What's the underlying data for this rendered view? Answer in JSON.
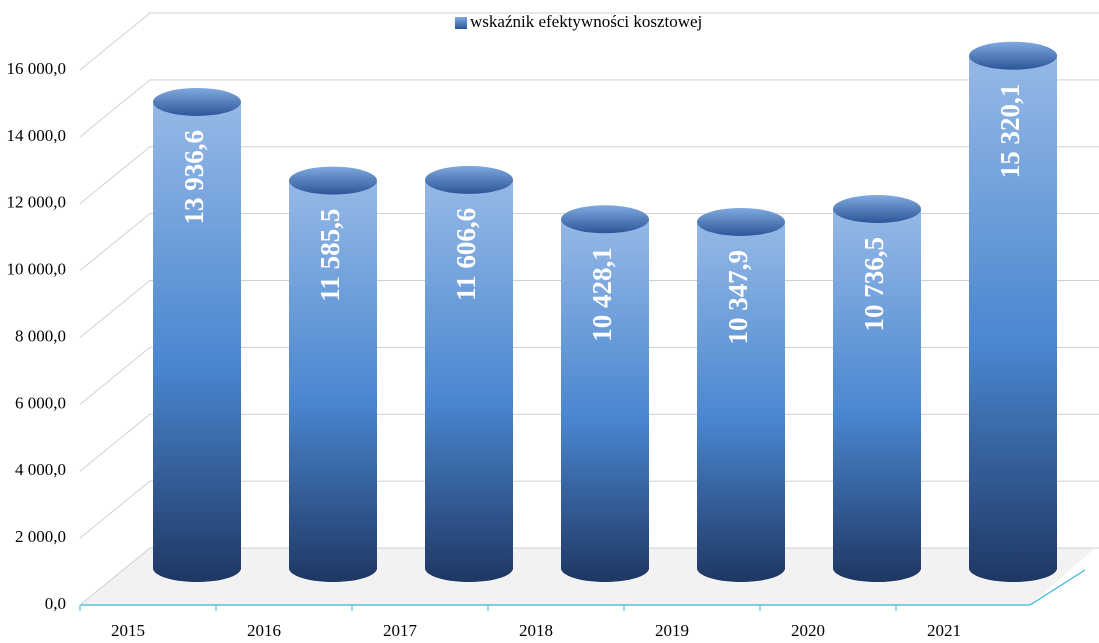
{
  "chart_data": {
    "type": "bar",
    "categories": [
      "2015",
      "2016",
      "2017",
      "2018",
      "2019",
      "2020",
      "2021"
    ],
    "series": [
      {
        "name": "wskaźnik efektywności kosztowej",
        "color": "#4f81bd",
        "values": [
          13936.6,
          11585.5,
          11606.6,
          10428.1,
          10347.9,
          10736.5,
          15320.1
        ],
        "value_labels": [
          "13 936,6",
          "11 585,5",
          "11 606,6",
          "10 428,1",
          "10 347,9",
          "10 736,5",
          "15 320,1"
        ]
      }
    ],
    "ylim": [
      0,
      16000
    ],
    "yticks": [
      {
        "value": 0,
        "label": "0,0"
      },
      {
        "value": 2000,
        "label": "2 000,0"
      },
      {
        "value": 4000,
        "label": "4 000,0"
      },
      {
        "value": 6000,
        "label": "6 000,0"
      },
      {
        "value": 8000,
        "label": "8 000,0"
      },
      {
        "value": 10000,
        "label": "10 000,0"
      },
      {
        "value": 12000,
        "label": "12 000,0"
      },
      {
        "value": 14000,
        "label": "14 000,0"
      },
      {
        "value": 16000,
        "label": "16 000,0"
      }
    ],
    "grid": true,
    "legend": "top"
  }
}
